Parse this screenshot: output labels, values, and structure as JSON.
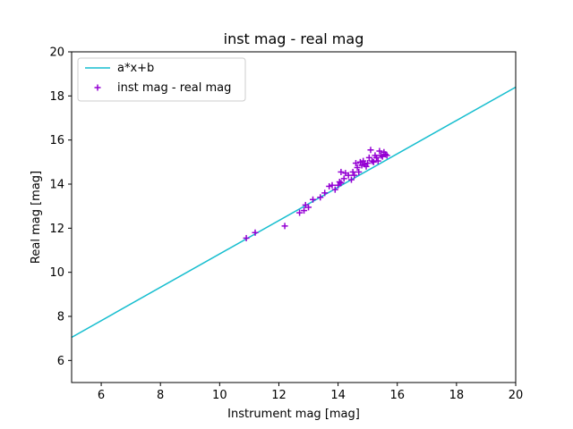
{
  "chart_data": {
    "type": "scatter",
    "title": "inst mag - real mag",
    "xlabel": "Instrument mag [mag]",
    "ylabel": "Real mag [mag]",
    "xlim": [
      5,
      20
    ],
    "ylim": [
      5,
      20
    ],
    "xticks": [
      6,
      8,
      10,
      12,
      14,
      16,
      18,
      20
    ],
    "yticks": [
      6,
      8,
      10,
      12,
      14,
      16,
      18,
      20
    ],
    "grid": false,
    "legend_position": "top-left",
    "line": {
      "name": "a*x+b",
      "color": "#17becf",
      "x": [
        5,
        20
      ],
      "y": [
        7.05,
        18.4
      ]
    },
    "series": [
      {
        "name": "inst mag - real mag",
        "color": "#9400d3",
        "marker": "+",
        "points": [
          [
            10.9,
            11.55
          ],
          [
            11.2,
            11.8
          ],
          [
            12.2,
            12.1
          ],
          [
            12.7,
            12.7
          ],
          [
            12.85,
            12.8
          ],
          [
            12.9,
            13.05
          ],
          [
            13.0,
            12.95
          ],
          [
            13.15,
            13.3
          ],
          [
            13.4,
            13.4
          ],
          [
            13.55,
            13.6
          ],
          [
            13.7,
            13.9
          ],
          [
            13.8,
            13.95
          ],
          [
            13.9,
            13.75
          ],
          [
            14.0,
            13.95
          ],
          [
            14.05,
            14.1
          ],
          [
            14.1,
            14.05
          ],
          [
            14.1,
            14.55
          ],
          [
            14.2,
            14.25
          ],
          [
            14.25,
            14.5
          ],
          [
            14.35,
            14.4
          ],
          [
            14.45,
            14.2
          ],
          [
            14.5,
            14.55
          ],
          [
            14.55,
            14.4
          ],
          [
            14.6,
            14.95
          ],
          [
            14.65,
            14.75
          ],
          [
            14.7,
            14.55
          ],
          [
            14.75,
            15.0
          ],
          [
            14.8,
            14.85
          ],
          [
            14.85,
            15.05
          ],
          [
            14.9,
            14.9
          ],
          [
            14.95,
            14.8
          ],
          [
            15.0,
            14.95
          ],
          [
            15.05,
            15.2
          ],
          [
            15.1,
            15.55
          ],
          [
            15.15,
            15.05
          ],
          [
            15.2,
            15.0
          ],
          [
            15.25,
            15.3
          ],
          [
            15.3,
            15.2
          ],
          [
            15.35,
            15.05
          ],
          [
            15.4,
            15.5
          ],
          [
            15.45,
            15.3
          ],
          [
            15.5,
            15.25
          ],
          [
            15.55,
            15.45
          ],
          [
            15.6,
            15.35
          ],
          [
            15.65,
            15.3
          ]
        ]
      }
    ]
  }
}
